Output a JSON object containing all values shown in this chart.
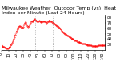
{
  "title": "Milwaukee Weather  Outdoor Temp (vs)  Heat Index per Minute (Last 24 Hours)",
  "line_color": "#ff0000",
  "bg_color": "#ffffff",
  "grid_color": "#b0b0b0",
  "ylim": [
    20,
    85
  ],
  "yticks": [
    30,
    40,
    50,
    60,
    70,
    80
  ],
  "vline_positions": [
    0.33,
    0.5
  ],
  "data_y": [
    28,
    27,
    26,
    26,
    25,
    24,
    24,
    23,
    23,
    23,
    24,
    25,
    26,
    28,
    30,
    33,
    36,
    40,
    44,
    48,
    52,
    55,
    58,
    61,
    63,
    64,
    64,
    63,
    62,
    61,
    63,
    67,
    70,
    72,
    71,
    68,
    65,
    63,
    65,
    68,
    71,
    73,
    74,
    74,
    75,
    76,
    77,
    76,
    75,
    74,
    73,
    74,
    75,
    74,
    73,
    72,
    72,
    73,
    74,
    74,
    73,
    72,
    71,
    72,
    73,
    74,
    75,
    75,
    74,
    73,
    72,
    71,
    70,
    69,
    68,
    67,
    66,
    65,
    64,
    63,
    62,
    60,
    58,
    56,
    54,
    53,
    52,
    51,
    50,
    49,
    48,
    47,
    46,
    45,
    44,
    43,
    42,
    41,
    41,
    40,
    39,
    38,
    38,
    37,
    36,
    35,
    35,
    34,
    34,
    33,
    33,
    32,
    32,
    31,
    31,
    31,
    30,
    30,
    30,
    29,
    29,
    29,
    28,
    28,
    28,
    27,
    27,
    27,
    27,
    27,
    27,
    27,
    27,
    27,
    28,
    28,
    28,
    28,
    28,
    28,
    28,
    28,
    28,
    28
  ],
  "title_fontsize": 4.5,
  "tick_fontsize": 3.5,
  "line_width": 0.5,
  "marker_size": 0.8,
  "figsize": [
    1.6,
    0.87
  ],
  "dpi": 100
}
